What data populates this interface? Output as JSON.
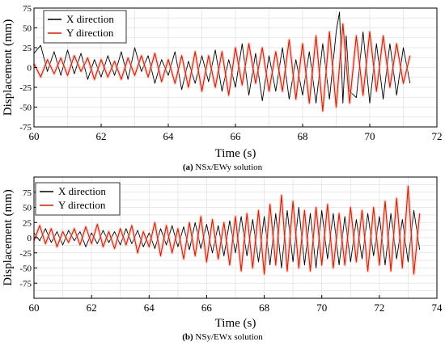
{
  "chart_data": [
    {
      "type": "line",
      "panel": "a",
      "xlabel": "Time (s)",
      "ylabel": "Displacement (mm)",
      "xlim": [
        60,
        72
      ],
      "ylim": [
        -75,
        75
      ],
      "xticks": [
        60,
        62,
        64,
        66,
        68,
        70,
        72
      ],
      "yticks": [
        -75,
        -50,
        -25,
        0,
        25,
        50,
        75
      ],
      "grid": true,
      "legend_position": "top-left",
      "series": [
        {
          "name": "X direction",
          "color": "#000000",
          "x": [
            60.0,
            60.2,
            60.4,
            60.6,
            60.8,
            61.0,
            61.2,
            61.4,
            61.6,
            61.8,
            62.0,
            62.2,
            62.4,
            62.6,
            62.8,
            63.0,
            63.2,
            63.4,
            63.6,
            63.8,
            64.0,
            64.2,
            64.4,
            64.6,
            64.8,
            65.0,
            65.2,
            65.4,
            65.6,
            65.8,
            66.0,
            66.2,
            66.4,
            66.6,
            66.8,
            67.0,
            67.2,
            67.4,
            67.6,
            67.8,
            68.0,
            68.2,
            68.4,
            68.6,
            68.8,
            69.0,
            69.1,
            69.2,
            69.3,
            69.4,
            69.6,
            69.8,
            70.0,
            70.2,
            70.4,
            70.6,
            70.8,
            71.0,
            71.2
          ],
          "y": [
            18,
            28,
            -5,
            20,
            -10,
            22,
            -8,
            18,
            -15,
            10,
            -12,
            15,
            -10,
            20,
            -15,
            25,
            -5,
            15,
            -20,
            10,
            -10,
            20,
            -28,
            8,
            -20,
            15,
            -18,
            22,
            -30,
            10,
            -25,
            30,
            -35,
            18,
            -42,
            15,
            -30,
            25,
            -40,
            10,
            -35,
            20,
            -45,
            30,
            -40,
            45,
            70,
            -45,
            40,
            -30,
            -38,
            45,
            -45,
            30,
            -40,
            30,
            -35,
            25,
            -20
          ]
        },
        {
          "name": "Y direction",
          "color": "#cc2200",
          "x": [
            60.0,
            60.2,
            60.4,
            60.6,
            60.8,
            61.0,
            61.2,
            61.4,
            61.6,
            61.8,
            62.0,
            62.2,
            62.4,
            62.6,
            62.8,
            63.0,
            63.2,
            63.4,
            63.6,
            63.8,
            64.0,
            64.2,
            64.4,
            64.6,
            64.8,
            65.0,
            65.2,
            65.4,
            65.6,
            65.8,
            66.0,
            66.2,
            66.4,
            66.6,
            66.8,
            67.0,
            67.2,
            67.4,
            67.6,
            67.8,
            68.0,
            68.2,
            68.4,
            68.6,
            68.8,
            69.0,
            69.2,
            69.4,
            69.6,
            69.8,
            70.0,
            70.2,
            70.4,
            70.6,
            70.8,
            71.0,
            71.2
          ],
          "y": [
            5,
            -12,
            10,
            -8,
            12,
            -10,
            15,
            -5,
            12,
            -15,
            10,
            -12,
            8,
            -15,
            12,
            -10,
            15,
            -12,
            18,
            -18,
            10,
            -20,
            15,
            -25,
            20,
            -30,
            15,
            -25,
            20,
            -35,
            25,
            -22,
            30,
            -20,
            25,
            -30,
            20,
            -30,
            35,
            -40,
            30,
            -45,
            40,
            -55,
            45,
            -50,
            55,
            -45,
            40,
            -35,
            45,
            -30,
            40,
            -25,
            30,
            -20,
            15
          ]
        }
      ]
    },
    {
      "type": "line",
      "panel": "b",
      "xlabel": "Time (s)",
      "ylabel": "Displacement (mm)",
      "xlim": [
        60,
        74
      ],
      "ylim": [
        -100,
        100
      ],
      "xticks": [
        60,
        62,
        64,
        66,
        68,
        70,
        72,
        74
      ],
      "yticks": [
        -75,
        -50,
        -25,
        0,
        25,
        50,
        75
      ],
      "grid": true,
      "legend_position": "top-left",
      "series": [
        {
          "name": "X direction",
          "color": "#000000",
          "x": [
            60.0,
            60.2,
            60.4,
            60.6,
            60.8,
            61.0,
            61.2,
            61.4,
            61.6,
            61.8,
            62.0,
            62.2,
            62.4,
            62.6,
            62.8,
            63.0,
            63.2,
            63.4,
            63.6,
            63.8,
            64.0,
            64.2,
            64.4,
            64.6,
            64.8,
            65.0,
            65.2,
            65.4,
            65.6,
            65.8,
            66.0,
            66.2,
            66.4,
            66.6,
            66.8,
            67.0,
            67.2,
            67.4,
            67.6,
            67.8,
            68.0,
            68.2,
            68.4,
            68.6,
            68.8,
            69.0,
            69.2,
            69.4,
            69.6,
            69.8,
            70.0,
            70.2,
            70.4,
            70.6,
            70.8,
            71.0,
            71.2,
            71.4,
            71.6,
            71.8,
            72.0,
            72.2,
            72.4,
            72.6,
            72.8,
            73.0,
            73.2,
            73.4
          ],
          "y": [
            8,
            -5,
            15,
            -8,
            10,
            -12,
            12,
            -5,
            10,
            -15,
            8,
            -10,
            12,
            -8,
            10,
            -12,
            15,
            -10,
            12,
            -15,
            8,
            -18,
            15,
            -12,
            20,
            -15,
            18,
            -20,
            25,
            -18,
            22,
            -25,
            20,
            -30,
            28,
            -25,
            35,
            -30,
            30,
            -40,
            35,
            -45,
            40,
            -50,
            45,
            -40,
            50,
            -45,
            40,
            -50,
            45,
            -35,
            40,
            -45,
            35,
            -40,
            30,
            -35,
            40,
            -30,
            35,
            -45,
            40,
            -35,
            30,
            -40,
            45,
            -20
          ]
        },
        {
          "name": "Y direction",
          "color": "#cc2200",
          "x": [
            60.0,
            60.2,
            60.4,
            60.6,
            60.8,
            61.0,
            61.2,
            61.4,
            61.6,
            61.8,
            62.0,
            62.2,
            62.4,
            62.6,
            62.8,
            63.0,
            63.2,
            63.4,
            63.6,
            63.8,
            64.0,
            64.2,
            64.4,
            64.6,
            64.8,
            65.0,
            65.2,
            65.4,
            65.6,
            65.8,
            66.0,
            66.2,
            66.4,
            66.6,
            66.8,
            67.0,
            67.2,
            67.4,
            67.6,
            67.8,
            68.0,
            68.2,
            68.4,
            68.6,
            68.8,
            69.0,
            69.2,
            69.4,
            69.6,
            69.8,
            70.0,
            70.2,
            70.4,
            70.6,
            70.8,
            71.0,
            71.2,
            71.4,
            71.6,
            71.8,
            72.0,
            72.2,
            72.4,
            72.6,
            72.8,
            73.0,
            73.2,
            73.4
          ],
          "y": [
            -5,
            20,
            -10,
            15,
            -15,
            10,
            -8,
            15,
            -12,
            18,
            -10,
            22,
            -15,
            10,
            -18,
            15,
            -12,
            20,
            -25,
            10,
            -15,
            25,
            -30,
            20,
            -25,
            15,
            -35,
            25,
            -30,
            35,
            -40,
            30,
            -35,
            25,
            -45,
            35,
            -55,
            40,
            -50,
            45,
            -60,
            55,
            -45,
            70,
            -55,
            60,
            -50,
            45,
            -55,
            50,
            -45,
            55,
            -50,
            40,
            -45,
            50,
            -40,
            45,
            -55,
            50,
            -45,
            60,
            -55,
            65,
            -50,
            85,
            -60,
            40
          ]
        }
      ]
    }
  ],
  "captions": {
    "a_label": "(a)",
    "a_text": "NSx/EWy solution",
    "b_label": "(b)",
    "b_text": "NSy/EWx solution"
  }
}
